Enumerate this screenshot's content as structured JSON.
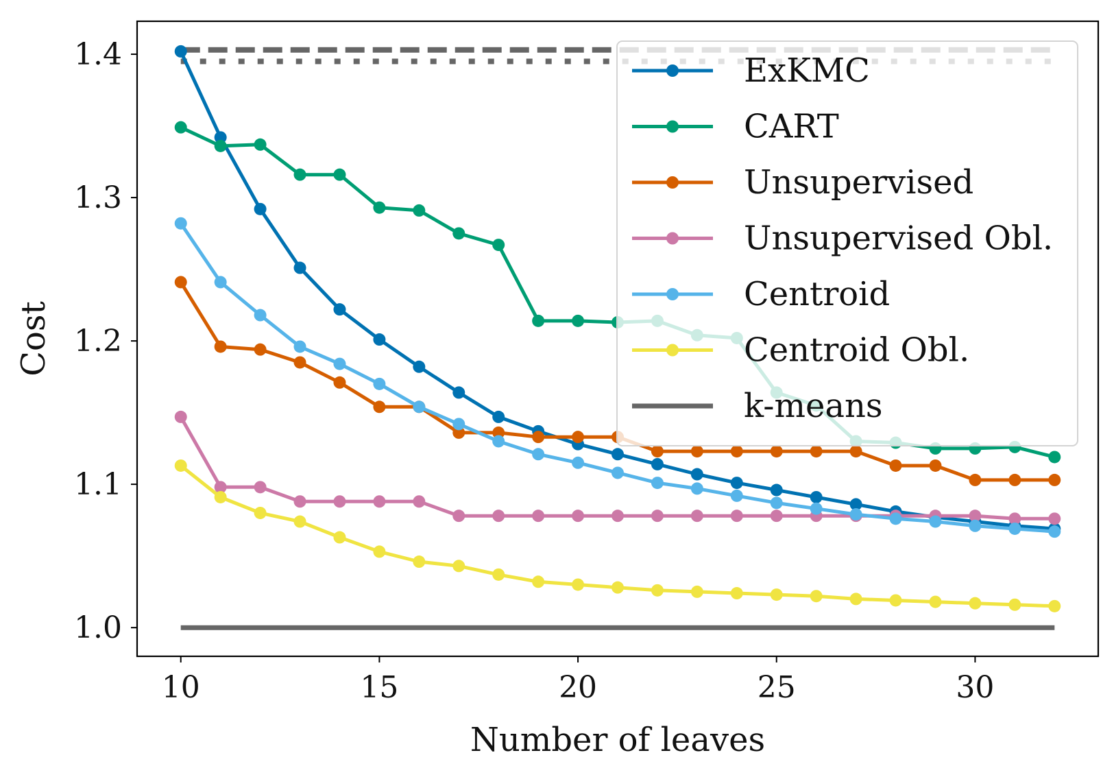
{
  "chart_data": {
    "type": "line",
    "title": "",
    "xlabel": "Number of leaves",
    "ylabel": "Cost",
    "xlim": [
      8.9,
      33.1
    ],
    "ylim": [
      0.98,
      1.423
    ],
    "xticks": [
      10,
      15,
      20,
      25,
      30
    ],
    "xtick_labels": [
      "10",
      "15",
      "20",
      "25",
      "30"
    ],
    "yticks": [
      1.0,
      1.1,
      1.2,
      1.3,
      1.4
    ],
    "ytick_labels": [
      "1.0",
      "1.1",
      "1.2",
      "1.3",
      "1.4"
    ],
    "grid": false,
    "legend_position": "top-right",
    "x": [
      10,
      11,
      12,
      13,
      14,
      15,
      16,
      17,
      18,
      19,
      20,
      21,
      22,
      23,
      24,
      25,
      26,
      27,
      28,
      29,
      30,
      31,
      32
    ],
    "series": [
      {
        "name": "ExKMC",
        "color": "#0072b2",
        "values": [
          1.402,
          1.342,
          1.292,
          1.251,
          1.222,
          1.201,
          1.182,
          1.164,
          1.147,
          1.137,
          1.128,
          1.121,
          1.114,
          1.107,
          1.101,
          1.096,
          1.091,
          1.086,
          1.081,
          1.077,
          1.074,
          1.071,
          1.069
        ]
      },
      {
        "name": "CART",
        "color": "#009e73",
        "values": [
          1.349,
          1.336,
          1.337,
          1.316,
          1.316,
          1.293,
          1.291,
          1.275,
          1.267,
          1.214,
          1.214,
          1.213,
          1.214,
          1.204,
          1.202,
          1.164,
          1.155,
          1.13,
          1.129,
          1.125,
          1.125,
          1.126,
          1.119
        ]
      },
      {
        "name": "Unsupervised",
        "color": "#d55e00",
        "values": [
          1.241,
          1.196,
          1.194,
          1.185,
          1.171,
          1.154,
          1.154,
          1.136,
          1.136,
          1.133,
          1.133,
          1.133,
          1.123,
          1.123,
          1.123,
          1.123,
          1.123,
          1.123,
          1.113,
          1.113,
          1.103,
          1.103,
          1.103
        ]
      },
      {
        "name": "Unsupervised Obl.",
        "color": "#cc79a7",
        "values": [
          1.147,
          1.098,
          1.098,
          1.088,
          1.088,
          1.088,
          1.088,
          1.078,
          1.078,
          1.078,
          1.078,
          1.078,
          1.078,
          1.078,
          1.078,
          1.078,
          1.078,
          1.078,
          1.078,
          1.078,
          1.078,
          1.076,
          1.076
        ]
      },
      {
        "name": "Centroid",
        "color": "#56b4e9",
        "values": [
          1.282,
          1.241,
          1.218,
          1.196,
          1.184,
          1.17,
          1.154,
          1.142,
          1.13,
          1.121,
          1.115,
          1.108,
          1.101,
          1.097,
          1.092,
          1.087,
          1.083,
          1.079,
          1.076,
          1.074,
          1.071,
          1.069,
          1.067
        ]
      },
      {
        "name": "Centroid Obl.",
        "color": "#f0e442",
        "values": [
          1.113,
          1.091,
          1.08,
          1.074,
          1.063,
          1.053,
          1.046,
          1.043,
          1.037,
          1.032,
          1.03,
          1.028,
          1.026,
          1.025,
          1.024,
          1.023,
          1.022,
          1.02,
          1.019,
          1.018,
          1.017,
          1.016,
          1.015
        ]
      },
      {
        "name": "k-means",
        "color": "#666666",
        "style": "solid-no-markers",
        "values": [
          1.0,
          1.0,
          1.0,
          1.0,
          1.0,
          1.0,
          1.0,
          1.0,
          1.0,
          1.0,
          1.0,
          1.0,
          1.0,
          1.0,
          1.0,
          1.0,
          1.0,
          1.0,
          1.0,
          1.0,
          1.0,
          1.0,
          1.0
        ]
      }
    ],
    "reference_lines": [
      {
        "style": "dashed",
        "color": "#666666",
        "x": [
          10,
          32
        ],
        "y": [
          1.403,
          1.403
        ]
      },
      {
        "style": "dotted",
        "color": "#666666",
        "x": [
          10,
          32
        ],
        "y": [
          1.395,
          1.395
        ]
      }
    ]
  }
}
